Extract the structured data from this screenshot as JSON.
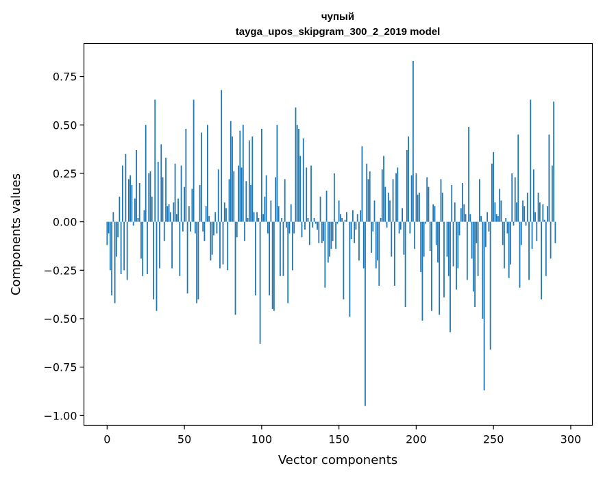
{
  "chart_data": {
    "type": "bar",
    "title_lines": [
      "чупый",
      "tayga_upos_skipgram_300_2_2019 model"
    ],
    "xlabel": "Vector components",
    "ylabel": "Components values",
    "xlim": [
      -15,
      314
    ],
    "ylim": [
      -1.05,
      0.92
    ],
    "xticks": [
      0,
      50,
      100,
      150,
      200,
      250,
      300
    ],
    "xtick_labels": [
      "0",
      "50",
      "100",
      "150",
      "200",
      "250",
      "300"
    ],
    "yticks": [
      -1.0,
      -0.75,
      -0.5,
      -0.25,
      0.0,
      0.25,
      0.5,
      0.75
    ],
    "ytick_labels": [
      "−1.00",
      "−0.75",
      "−0.50",
      "−0.25",
      "0.00",
      "0.25",
      "0.50",
      "0.75"
    ],
    "grid": false,
    "legend": "none",
    "bar_color": "#1f77b4",
    "values": [
      -0.12,
      -0.06,
      -0.25,
      -0.38,
      0.05,
      -0.42,
      -0.18,
      -0.08,
      0.13,
      -0.27,
      0.29,
      -0.25,
      0.35,
      -0.3,
      0.22,
      0.24,
      0.19,
      -0.02,
      0.12,
      0.37,
      0.02,
      0.2,
      -0.19,
      -0.28,
      0.06,
      0.5,
      -0.27,
      0.25,
      0.26,
      0.13,
      -0.4,
      0.63,
      -0.46,
      0.31,
      -0.24,
      0.4,
      0.23,
      -0.1,
      0.33,
      0.08,
      0.09,
      0.05,
      -0.24,
      0.1,
      0.3,
      0.04,
      0.12,
      -0.28,
      0.29,
      -0.05,
      0.18,
      0.48,
      -0.37,
      0.08,
      -0.05,
      0.17,
      0.63,
      -0.06,
      -0.42,
      -0.4,
      0.19,
      0.46,
      -0.05,
      -0.1,
      0.08,
      0.5,
      0.03,
      -0.2,
      -0.17,
      -0.07,
      0.05,
      -0.06,
      0.27,
      -0.24,
      0.68,
      -0.22,
      0.1,
      0.07,
      -0.25,
      0.22,
      0.52,
      0.44,
      0.26,
      -0.48,
      -0.08,
      0.29,
      0.47,
      0.28,
      0.5,
      -0.1,
      0.21,
      0.02,
      0.42,
      0.19,
      0.44,
      0.05,
      -0.38,
      0.05,
      0.02,
      -0.63,
      0.48,
      0.04,
      0.13,
      0.24,
      -0.06,
      -0.38,
      0.11,
      -0.45,
      -0.46,
      0.23,
      0.5,
      0.08,
      -0.28,
      0.02,
      -0.28,
      0.22,
      -0.03,
      -0.42,
      -0.06,
      0.09,
      -0.25,
      -0.06,
      0.59,
      0.5,
      0.48,
      0.34,
      -0.08,
      0.43,
      -0.04,
      0.28,
      0.02,
      -0.12,
      0.29,
      -0.03,
      0.02,
      -0.01,
      -0.04,
      -0.11,
      0.13,
      -0.11,
      -0.1,
      -0.34,
      0.16,
      -0.21,
      -0.18,
      -0.14,
      -0.1,
      0.25,
      -0.14,
      -0.01,
      0.11,
      0.04,
      0.02,
      -0.4,
      0.01,
      0.05,
      0.0,
      -0.49,
      -0.09,
      0.06,
      -0.11,
      -0.04,
      0.04,
      -0.2,
      0.06,
      0.39,
      -0.24,
      -0.95,
      0.3,
      0.22,
      0.26,
      -0.16,
      -0.05,
      0.11,
      -0.24,
      -0.2,
      -0.33,
      0.02,
      0.27,
      0.34,
      0.18,
      -0.03,
      0.15,
      0.11,
      -0.18,
      0.22,
      -0.33,
      0.25,
      0.28,
      -0.06,
      -0.04,
      0.07,
      -0.17,
      -0.44,
      0.37,
      0.44,
      -0.06,
      0.24,
      0.83,
      -0.14,
      0.25,
      0.14,
      0.15,
      -0.26,
      -0.51,
      -0.18,
      -0.01,
      0.23,
      0.18,
      -0.15,
      -0.46,
      0.09,
      0.08,
      -0.12,
      -0.21,
      -0.48,
      0.22,
      0.15,
      -0.39,
      0.0,
      -0.18,
      -0.28,
      -0.57,
      0.19,
      -0.23,
      0.1,
      -0.35,
      -0.24,
      -0.07,
      0.07,
      0.2,
      0.09,
      0.04,
      -0.3,
      0.49,
      0.04,
      -0.19,
      -0.36,
      -0.44,
      -0.11,
      -0.28,
      0.22,
      0.03,
      -0.5,
      -0.87,
      -0.13,
      0.05,
      -0.05,
      -0.66,
      0.3,
      0.36,
      0.1,
      0.04,
      0.03,
      0.17,
      0.11,
      -0.12,
      -0.24,
      0.02,
      -0.06,
      -0.29,
      -0.22,
      0.25,
      -0.02,
      0.23,
      0.1,
      0.45,
      -0.34,
      -0.12,
      0.11,
      0.08,
      -0.02,
      0.15,
      -0.3,
      0.63,
      -0.14,
      0.27,
      0.05,
      -0.1,
      0.15,
      0.1,
      -0.4,
      0.09,
      0.01,
      -0.28,
      0.08,
      0.45,
      -0.19,
      0.29,
      0.62,
      -0.11,
      0.0,
      0.0
    ]
  }
}
